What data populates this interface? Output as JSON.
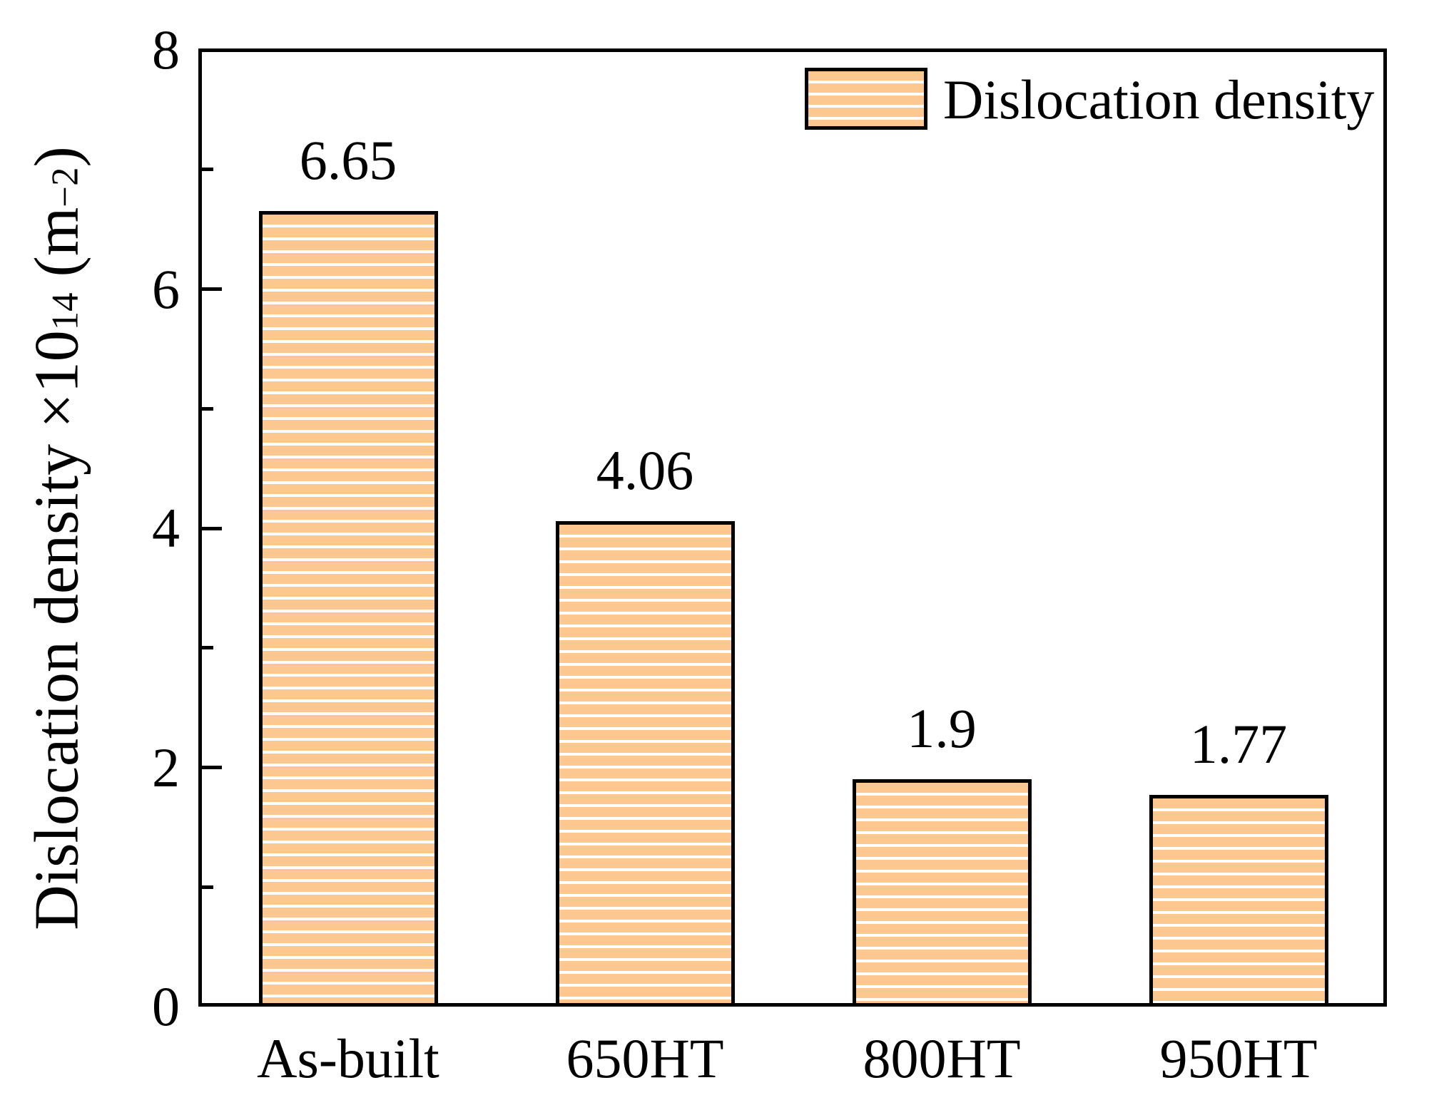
{
  "chart_data": {
    "type": "bar",
    "title": "",
    "categories": [
      "As-built",
      "650HT",
      "800HT",
      "950HT"
    ],
    "values": [
      6.65,
      4.06,
      1.9,
      1.77
    ],
    "bar_labels": [
      "6.65",
      "4.06",
      "1.9",
      "1.77"
    ],
    "xlabel": "",
    "ylabel": "Dislocation density ×10¹⁴ (m⁻²)",
    "ylabel_parts": {
      "main": "Dislocation density ×10",
      "exponent": "14",
      "unit_prefix": " (m",
      "unit_exponent": "−2",
      "unit_suffix": ")"
    },
    "ylim": [
      0,
      8
    ],
    "major_yticks": [
      0,
      2,
      4,
      6,
      8
    ],
    "minor_yticks": [
      1,
      3,
      5,
      7
    ],
    "grid": false,
    "legend": {
      "label": "Dislocation density",
      "position": "upper-right",
      "swatch": "hatched-orange-rectangle"
    },
    "hatch_style": "horizontal-lines",
    "colors": {
      "bar_fill": "#fcc890",
      "hatch_line": "#ffffff",
      "bar_border": "#000000",
      "frame": "#000000",
      "text": "#000000",
      "background": "#ffffff"
    }
  }
}
